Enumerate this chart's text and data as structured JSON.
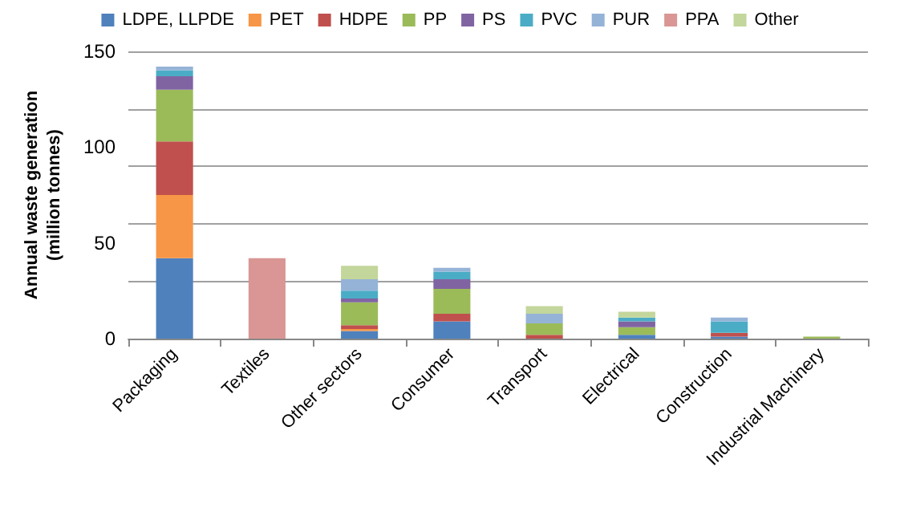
{
  "chart_data": {
    "type": "bar",
    "stacked": true,
    "ylabel": "Annual waste generation (million tonnes)",
    "categories": [
      "Packaging",
      "Textiles",
      "Other sectors",
      "Consumer",
      "Transport",
      "Electrical",
      "Construction",
      "Industrial Machinery"
    ],
    "series": [
      {
        "name": "LDPE, LLPDE",
        "color": "#4f81bd",
        "values": [
          42,
          null,
          4,
          9,
          null,
          2,
          1,
          null
        ]
      },
      {
        "name": "PET",
        "color": "#f79646",
        "values": [
          33,
          null,
          1,
          null,
          null,
          null,
          null,
          null
        ]
      },
      {
        "name": "HDPE",
        "color": "#c0504d",
        "values": [
          28,
          null,
          2,
          4,
          2,
          null,
          2,
          null
        ]
      },
      {
        "name": "PP",
        "color": "#9bbb59",
        "values": [
          27,
          null,
          12,
          13,
          6,
          4,
          null,
          1
        ]
      },
      {
        "name": "PS",
        "color": "#8064a2",
        "values": [
          7,
          null,
          2,
          5,
          null,
          3,
          null,
          null
        ]
      },
      {
        "name": "PVC",
        "color": "#4bacc6",
        "values": [
          3,
          null,
          4,
          4,
          null,
          2,
          6,
          null
        ]
      },
      {
        "name": "PUR",
        "color": "#95b3d7",
        "values": [
          2,
          null,
          6,
          2,
          5,
          null,
          2,
          null
        ]
      },
      {
        "name": "PPA",
        "color": "#d99694",
        "values": [
          null,
          42,
          null,
          null,
          null,
          null,
          null,
          null
        ]
      },
      {
        "name": "Other",
        "color": "#c3d69b",
        "values": [
          null,
          null,
          7,
          null,
          4,
          3,
          null,
          null
        ]
      }
    ],
    "ylim": [
      0,
      150
    ],
    "yticks": [
      0,
      50,
      100,
      150
    ],
    "grid": "y",
    "legend": "top"
  }
}
